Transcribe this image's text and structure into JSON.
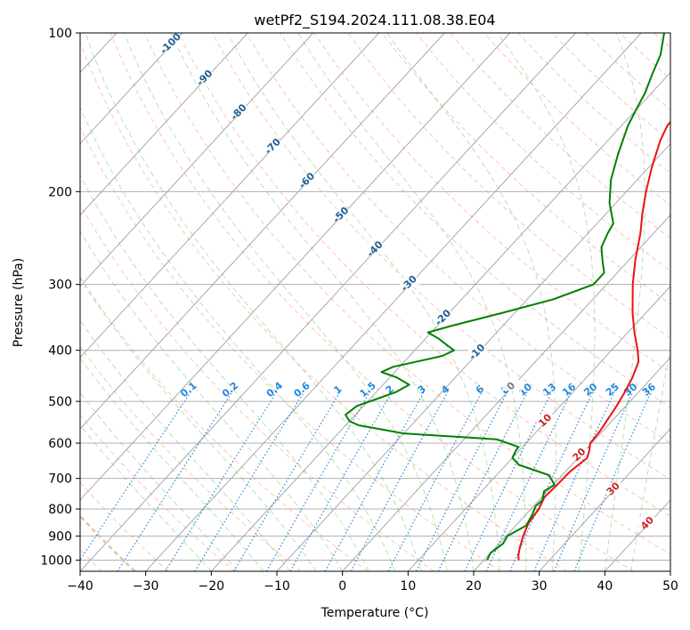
{
  "chart_data": {
    "type": "line",
    "chart_kind": "skew-T log-P diagram",
    "title": "wetPf2_S194.2024.111.08.38.E04",
    "xlabel": "Temperature (°C)",
    "ylabel": "Pressure (hPa)",
    "xlim": [
      -40,
      50
    ],
    "ylim": [
      1050,
      100
    ],
    "y_scale": "log",
    "x_ticks": [
      "−40",
      "−30",
      "−20",
      "−10",
      "0",
      "10",
      "20",
      "30",
      "40",
      "50"
    ],
    "y_ticks": [
      {
        "value": 100,
        "label": "100"
      },
      {
        "value": 200,
        "label": "200"
      },
      {
        "value": 300,
        "label": "300"
      },
      {
        "value": 400,
        "label": "400"
      },
      {
        "value": 500,
        "label": "500"
      },
      {
        "value": 600,
        "label": "600"
      },
      {
        "value": 700,
        "label": "700"
      },
      {
        "value": 800,
        "label": "800"
      },
      {
        "value": 900,
        "label": "900"
      },
      {
        "value": 1000,
        "label": "1000"
      }
    ],
    "grid": true,
    "colors": {
      "temperature": "#ee1111",
      "dewpoint": "#008000",
      "dry_adiabat": "#ff8866",
      "moist_adiabat": "#66bb66",
      "mixing_ratio": "#2288dd",
      "isotherm_label_neg": "#1f5f96",
      "isotherm_label_pos": "#cc2222",
      "isotherm_label_zero": "#777777"
    },
    "series": [
      {
        "key": "temperature",
        "points": [
          [
            1000,
            25.3
          ],
          [
            980,
            24.6
          ],
          [
            950,
            23.8
          ],
          [
            900,
            22.6
          ],
          [
            850,
            21.6
          ],
          [
            800,
            21.2
          ],
          [
            760,
            20.4
          ],
          [
            720,
            20.6
          ],
          [
            680,
            20.7
          ],
          [
            640,
            21.4
          ],
          [
            620,
            20.7
          ],
          [
            600,
            19.8
          ],
          [
            570,
            19.6
          ],
          [
            540,
            19.1
          ],
          [
            510,
            18.6
          ],
          [
            480,
            17.9
          ],
          [
            450,
            17.0
          ],
          [
            420,
            15.7
          ],
          [
            400,
            14.0
          ],
          [
            370,
            11.0
          ],
          [
            340,
            8.0
          ],
          [
            300,
            4.0
          ],
          [
            270,
            1.0
          ],
          [
            240,
            -2.0
          ],
          [
            220,
            -4.5
          ],
          [
            200,
            -7.0
          ],
          [
            180,
            -9.5
          ],
          [
            160,
            -12.0
          ],
          [
            150,
            -13.0
          ],
          [
            140,
            -13.2
          ],
          [
            130,
            -12.0
          ],
          [
            120,
            -8.0
          ],
          [
            110,
            -2.0
          ],
          [
            100,
            4.0
          ]
        ]
      },
      {
        "key": "dewpoint",
        "points": [
          [
            1000,
            20.5
          ],
          [
            970,
            20.0
          ],
          [
            930,
            20.6
          ],
          [
            900,
            20.2
          ],
          [
            860,
            21.6
          ],
          [
            820,
            21.0
          ],
          [
            790,
            20.3
          ],
          [
            770,
            20.5
          ],
          [
            740,
            19.5
          ],
          [
            720,
            20.2
          ],
          [
            690,
            18.0
          ],
          [
            660,
            12.0
          ],
          [
            640,
            10.0
          ],
          [
            620,
            9.5
          ],
          [
            610,
            9.4
          ],
          [
            590,
            5.0
          ],
          [
            575,
            -10.0
          ],
          [
            565,
            -14.0
          ],
          [
            555,
            -18.0
          ],
          [
            545,
            -20.0
          ],
          [
            530,
            -21.5
          ],
          [
            510,
            -21.0
          ],
          [
            495,
            -19.0
          ],
          [
            480,
            -17.0
          ],
          [
            465,
            -16.0
          ],
          [
            450,
            -19.0
          ],
          [
            440,
            -22.0
          ],
          [
            430,
            -21.0
          ],
          [
            420,
            -18.0
          ],
          [
            410,
            -15.0
          ],
          [
            400,
            -14.0
          ],
          [
            390,
            -16.0
          ],
          [
            380,
            -18.0
          ],
          [
            370,
            -20.5
          ],
          [
            360,
            -18.0
          ],
          [
            340,
            -12.0
          ],
          [
            320,
            -6.0
          ],
          [
            300,
            -2.0
          ],
          [
            285,
            -2.0
          ],
          [
            270,
            -4.0
          ],
          [
            255,
            -6.0
          ],
          [
            240,
            -7.0
          ],
          [
            230,
            -7.5
          ],
          [
            210,
            -11.0
          ],
          [
            190,
            -14.0
          ],
          [
            170,
            -16.5
          ],
          [
            150,
            -19.0
          ],
          [
            140,
            -20.0
          ],
          [
            130,
            -21.0
          ],
          [
            120,
            -22.5
          ],
          [
            110,
            -24.0
          ],
          [
            100,
            -26.5
          ]
        ]
      }
    ],
    "isotherm_labels": [
      {
        "text": "-100",
        "temp": -100
      },
      {
        "text": "-90",
        "temp": -90
      },
      {
        "text": "-80",
        "temp": -80
      },
      {
        "text": "-70",
        "temp": -70
      },
      {
        "text": "-60",
        "temp": -60
      },
      {
        "text": "-50",
        "temp": -50
      },
      {
        "text": "-40",
        "temp": -40
      },
      {
        "text": "-30",
        "temp": -30
      },
      {
        "text": "-20",
        "temp": -20
      },
      {
        "text": "-10",
        "temp": -10
      },
      {
        "text": "0",
        "temp": 0
      },
      {
        "text": "10",
        "temp": 10
      },
      {
        "text": "20",
        "temp": 20
      },
      {
        "text": "30",
        "temp": 30
      },
      {
        "text": "40",
        "temp": 40
      }
    ],
    "mixing_ratio_labels": [
      {
        "text": "0.1",
        "value": 0.1
      },
      {
        "text": "0.2",
        "value": 0.2
      },
      {
        "text": "0.4",
        "value": 0.4
      },
      {
        "text": "0.6",
        "value": 0.6
      },
      {
        "text": "1",
        "value": 1
      },
      {
        "text": "1.5",
        "value": 1.5
      },
      {
        "text": "2",
        "value": 2
      },
      {
        "text": "3",
        "value": 3
      },
      {
        "text": "4",
        "value": 4
      },
      {
        "text": "6",
        "value": 6
      },
      {
        "text": "8",
        "value": 8
      },
      {
        "text": "10",
        "value": 10
      },
      {
        "text": "13",
        "value": 13
      },
      {
        "text": "16",
        "value": 16
      },
      {
        "text": "20",
        "value": 20
      },
      {
        "text": "25",
        "value": 25
      },
      {
        "text": "30",
        "value": 30
      },
      {
        "text": "36",
        "value": 36
      }
    ]
  }
}
